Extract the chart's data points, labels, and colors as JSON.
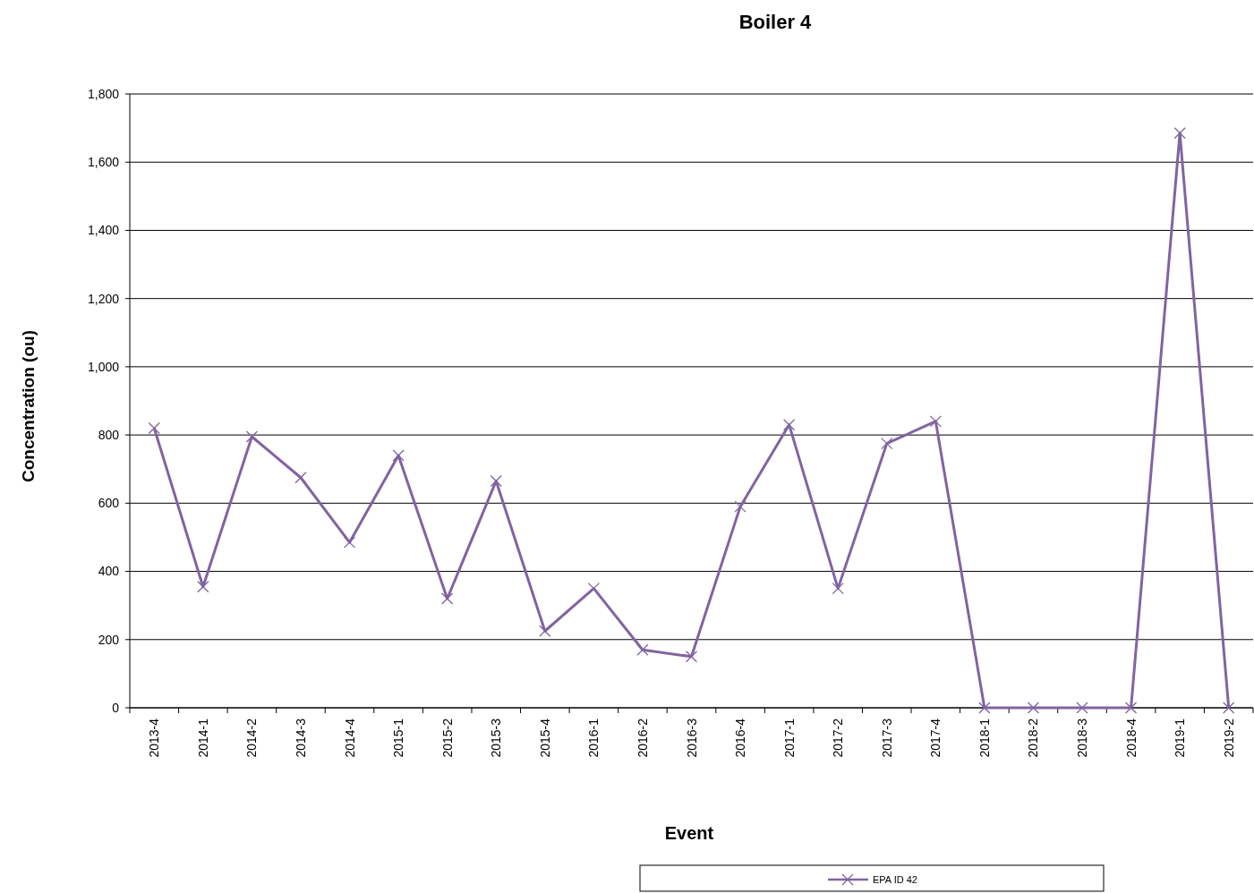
{
  "chart_data": {
    "type": "line",
    "title": "Boiler 4",
    "xlabel": "Event",
    "ylabel": "Concentration (ou)",
    "categories": [
      "2013-4",
      "2014-1",
      "2014-2",
      "2014-3",
      "2014-4",
      "2015-1",
      "2015-2",
      "2015-3",
      "2015-4",
      "2016-1",
      "2016-2",
      "2016-3",
      "2016-4",
      "2017-1",
      "2017-2",
      "2017-3",
      "2017-4",
      "2018-1",
      "2018-2",
      "2018-3",
      "2018-4",
      "2019-1",
      "2019-2"
    ],
    "series": [
      {
        "name": "EPA ID 42",
        "color": "#8064a2",
        "values": [
          820,
          355,
          795,
          675,
          485,
          740,
          320,
          665,
          225,
          350,
          170,
          150,
          590,
          830,
          350,
          775,
          840,
          0,
          0,
          0,
          0,
          1685,
          0
        ]
      }
    ],
    "ylim": [
      0,
      1800
    ],
    "yticks": [
      {
        "value": 0,
        "label": "0"
      },
      {
        "value": 200,
        "label": "200"
      },
      {
        "value": 400,
        "label": "400"
      },
      {
        "value": 600,
        "label": "600"
      },
      {
        "value": 800,
        "label": "800"
      },
      {
        "value": 1000,
        "label": "1,000"
      },
      {
        "value": 1200,
        "label": "1,200"
      },
      {
        "value": 1400,
        "label": "1,400"
      },
      {
        "value": 1600,
        "label": "1,600"
      },
      {
        "value": 1800,
        "label": "1,800"
      }
    ],
    "grid": "y",
    "legend": "bottom",
    "marker": "cross",
    "line_style": "solid"
  }
}
